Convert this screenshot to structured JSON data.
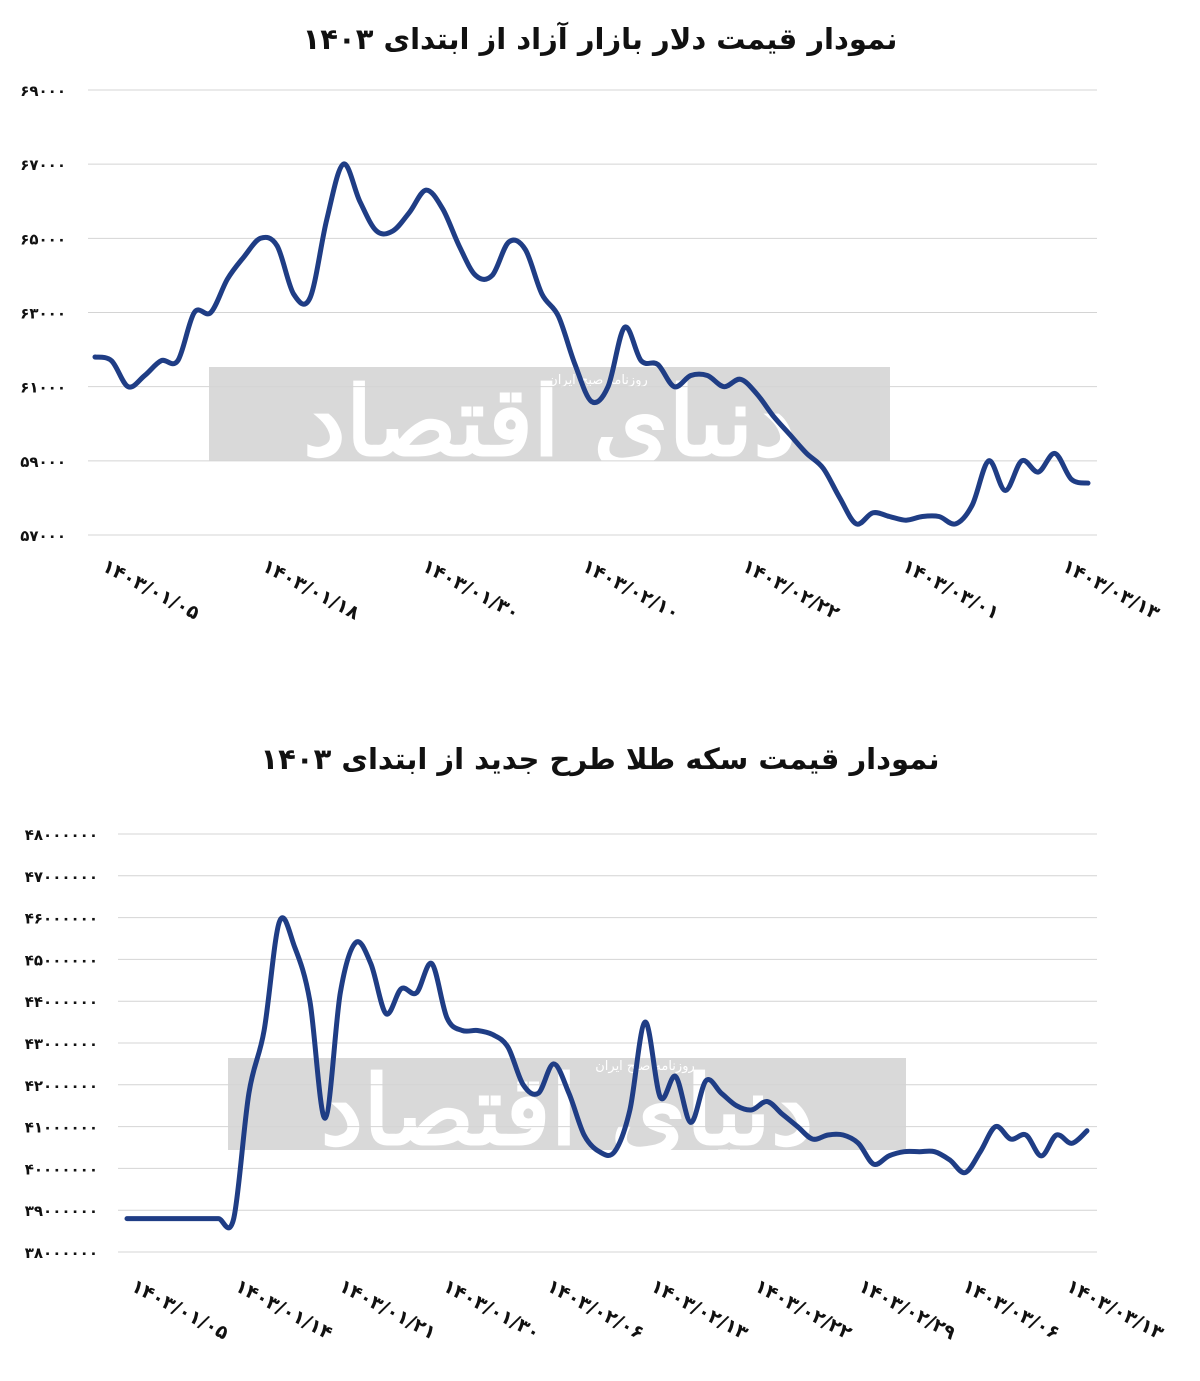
{
  "chart_data": [
    {
      "type": "line",
      "title": "نمودار قیمت دلار بازار آزاد از ابتدای ۱۴۰۳",
      "xlabel": "",
      "ylabel": "",
      "ylim": [
        57000,
        69000
      ],
      "yticks": [
        "۶۹۰۰۰",
        "۶۷۰۰۰",
        "۶۵۰۰۰",
        "۶۳۰۰۰",
        "۶۱۰۰۰",
        "۵۹۰۰۰",
        "۵۷۰۰۰"
      ],
      "ytick_values": [
        69000,
        67000,
        65000,
        63000,
        61000,
        59000,
        57000
      ],
      "xticks": [
        "۱۴۰۳/۰۱/۰۵",
        "۱۴۰۳/۰۱/۱۸",
        "۱۴۰۳/۰۱/۳۰",
        "۱۴۰۳/۰۲/۱۰",
        "۱۴۰۳/۰۲/۲۲",
        "۱۴۰۳/۰۳/۰۱",
        "۱۴۰۳/۰۳/۱۳"
      ],
      "grid": true,
      "color": "#1f3d85",
      "series": [
        {
          "values": [
            61800,
            61700,
            61000,
            61300,
            61700,
            61700,
            63000,
            63000,
            63900,
            64500,
            65000,
            64800,
            63500,
            63400,
            65500,
            67000,
            66000,
            65200,
            65200,
            65700,
            66300,
            65800,
            64800,
            64000,
            64000,
            64900,
            64700,
            63500,
            62900,
            61600,
            60600,
            61000,
            62600,
            61700,
            61600,
            61000,
            61300,
            61300,
            61000,
            61200,
            60800,
            60200,
            59700,
            59200,
            58800,
            58000,
            57300,
            57600,
            57500,
            57400,
            57500,
            57500,
            57300,
            57800,
            59000,
            58200,
            59000,
            58700,
            59200,
            58500,
            58400
          ]
        }
      ]
    },
    {
      "type": "line",
      "title": "نمودار قیمت سکه طلا طرح جدید از ابتدای ۱۴۰۳",
      "xlabel": "",
      "ylabel": "",
      "ylim": [
        38000000,
        48000000
      ],
      "yticks": [
        "۴۸۰۰۰۰۰۰",
        "۴۷۰۰۰۰۰۰",
        "۴۶۰۰۰۰۰۰",
        "۴۵۰۰۰۰۰۰",
        "۴۴۰۰۰۰۰۰",
        "۴۳۰۰۰۰۰۰",
        "۴۲۰۰۰۰۰۰",
        "۴۱۰۰۰۰۰۰",
        "۴۰۰۰۰۰۰۰",
        "۳۹۰۰۰۰۰۰",
        "۳۸۰۰۰۰۰۰"
      ],
      "ytick_values": [
        48000000,
        47000000,
        46000000,
        45000000,
        44000000,
        43000000,
        42000000,
        41000000,
        40000000,
        39000000,
        38000000
      ],
      "xticks": [
        "۱۴۰۳/۰۱/۰۵",
        "۱۴۰۳/۰۱/۱۴",
        "۱۴۰۳/۰۱/۲۱",
        "۱۴۰۳/۰۱/۳۰",
        "۱۴۰۳/۰۲/۰۶",
        "۱۴۰۳/۰۲/۱۳",
        "۱۴۰۳/۰۲/۲۲",
        "۱۴۰۳/۰۲/۲۹",
        "۱۴۰۳/۰۳/۰۶",
        "۱۴۰۳/۰۳/۱۳"
      ],
      "grid": true,
      "color": "#1f3d85",
      "series": [
        {
          "values": [
            38800000,
            38800000,
            38800000,
            38800000,
            38800000,
            38800000,
            38800000,
            38800000,
            41800000,
            43300000,
            45900000,
            45300000,
            44000000,
            41200000,
            44200000,
            45400000,
            44900000,
            43700000,
            44300000,
            44200000,
            44900000,
            43600000,
            43300000,
            43300000,
            43200000,
            42900000,
            42000000,
            41800000,
            42500000,
            41800000,
            40800000,
            40400000,
            40400000,
            41400000,
            43500000,
            41700000,
            42200000,
            41100000,
            42100000,
            41800000,
            41500000,
            41400000,
            41600000,
            41300000,
            41000000,
            40700000,
            40800000,
            40800000,
            40600000,
            40100000,
            40300000,
            40400000,
            40400000,
            40400000,
            40200000,
            39900000,
            40400000,
            41000000,
            40700000,
            40800000,
            40300000,
            40800000,
            40600000,
            40900000
          ]
        }
      ]
    }
  ],
  "watermark": {
    "brand": "دنیای اقتصاد",
    "tag": "روزنامه صبح ایران"
  }
}
